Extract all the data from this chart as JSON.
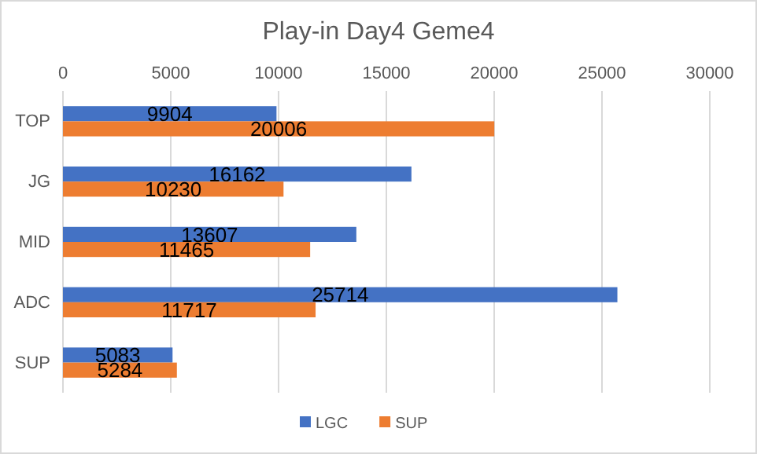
{
  "chart_data": {
    "type": "bar",
    "orientation": "horizontal",
    "title": "Play-in Day4 Geme4",
    "categories": [
      "TOP",
      "JG",
      "MID",
      "ADC",
      "SUP"
    ],
    "series": [
      {
        "name": "LGC",
        "color": "#4472c4",
        "values": [
          9904,
          16162,
          13607,
          25714,
          5083
        ]
      },
      {
        "name": "SUP",
        "color": "#ed7d31",
        "values": [
          20006,
          10230,
          11465,
          11717,
          5284
        ]
      }
    ],
    "xlim": [
      0,
      30000
    ],
    "xticks": [
      0,
      5000,
      10000,
      15000,
      20000,
      25000,
      30000
    ],
    "grid": "x",
    "legend": "bottom",
    "data_labels": true
  }
}
